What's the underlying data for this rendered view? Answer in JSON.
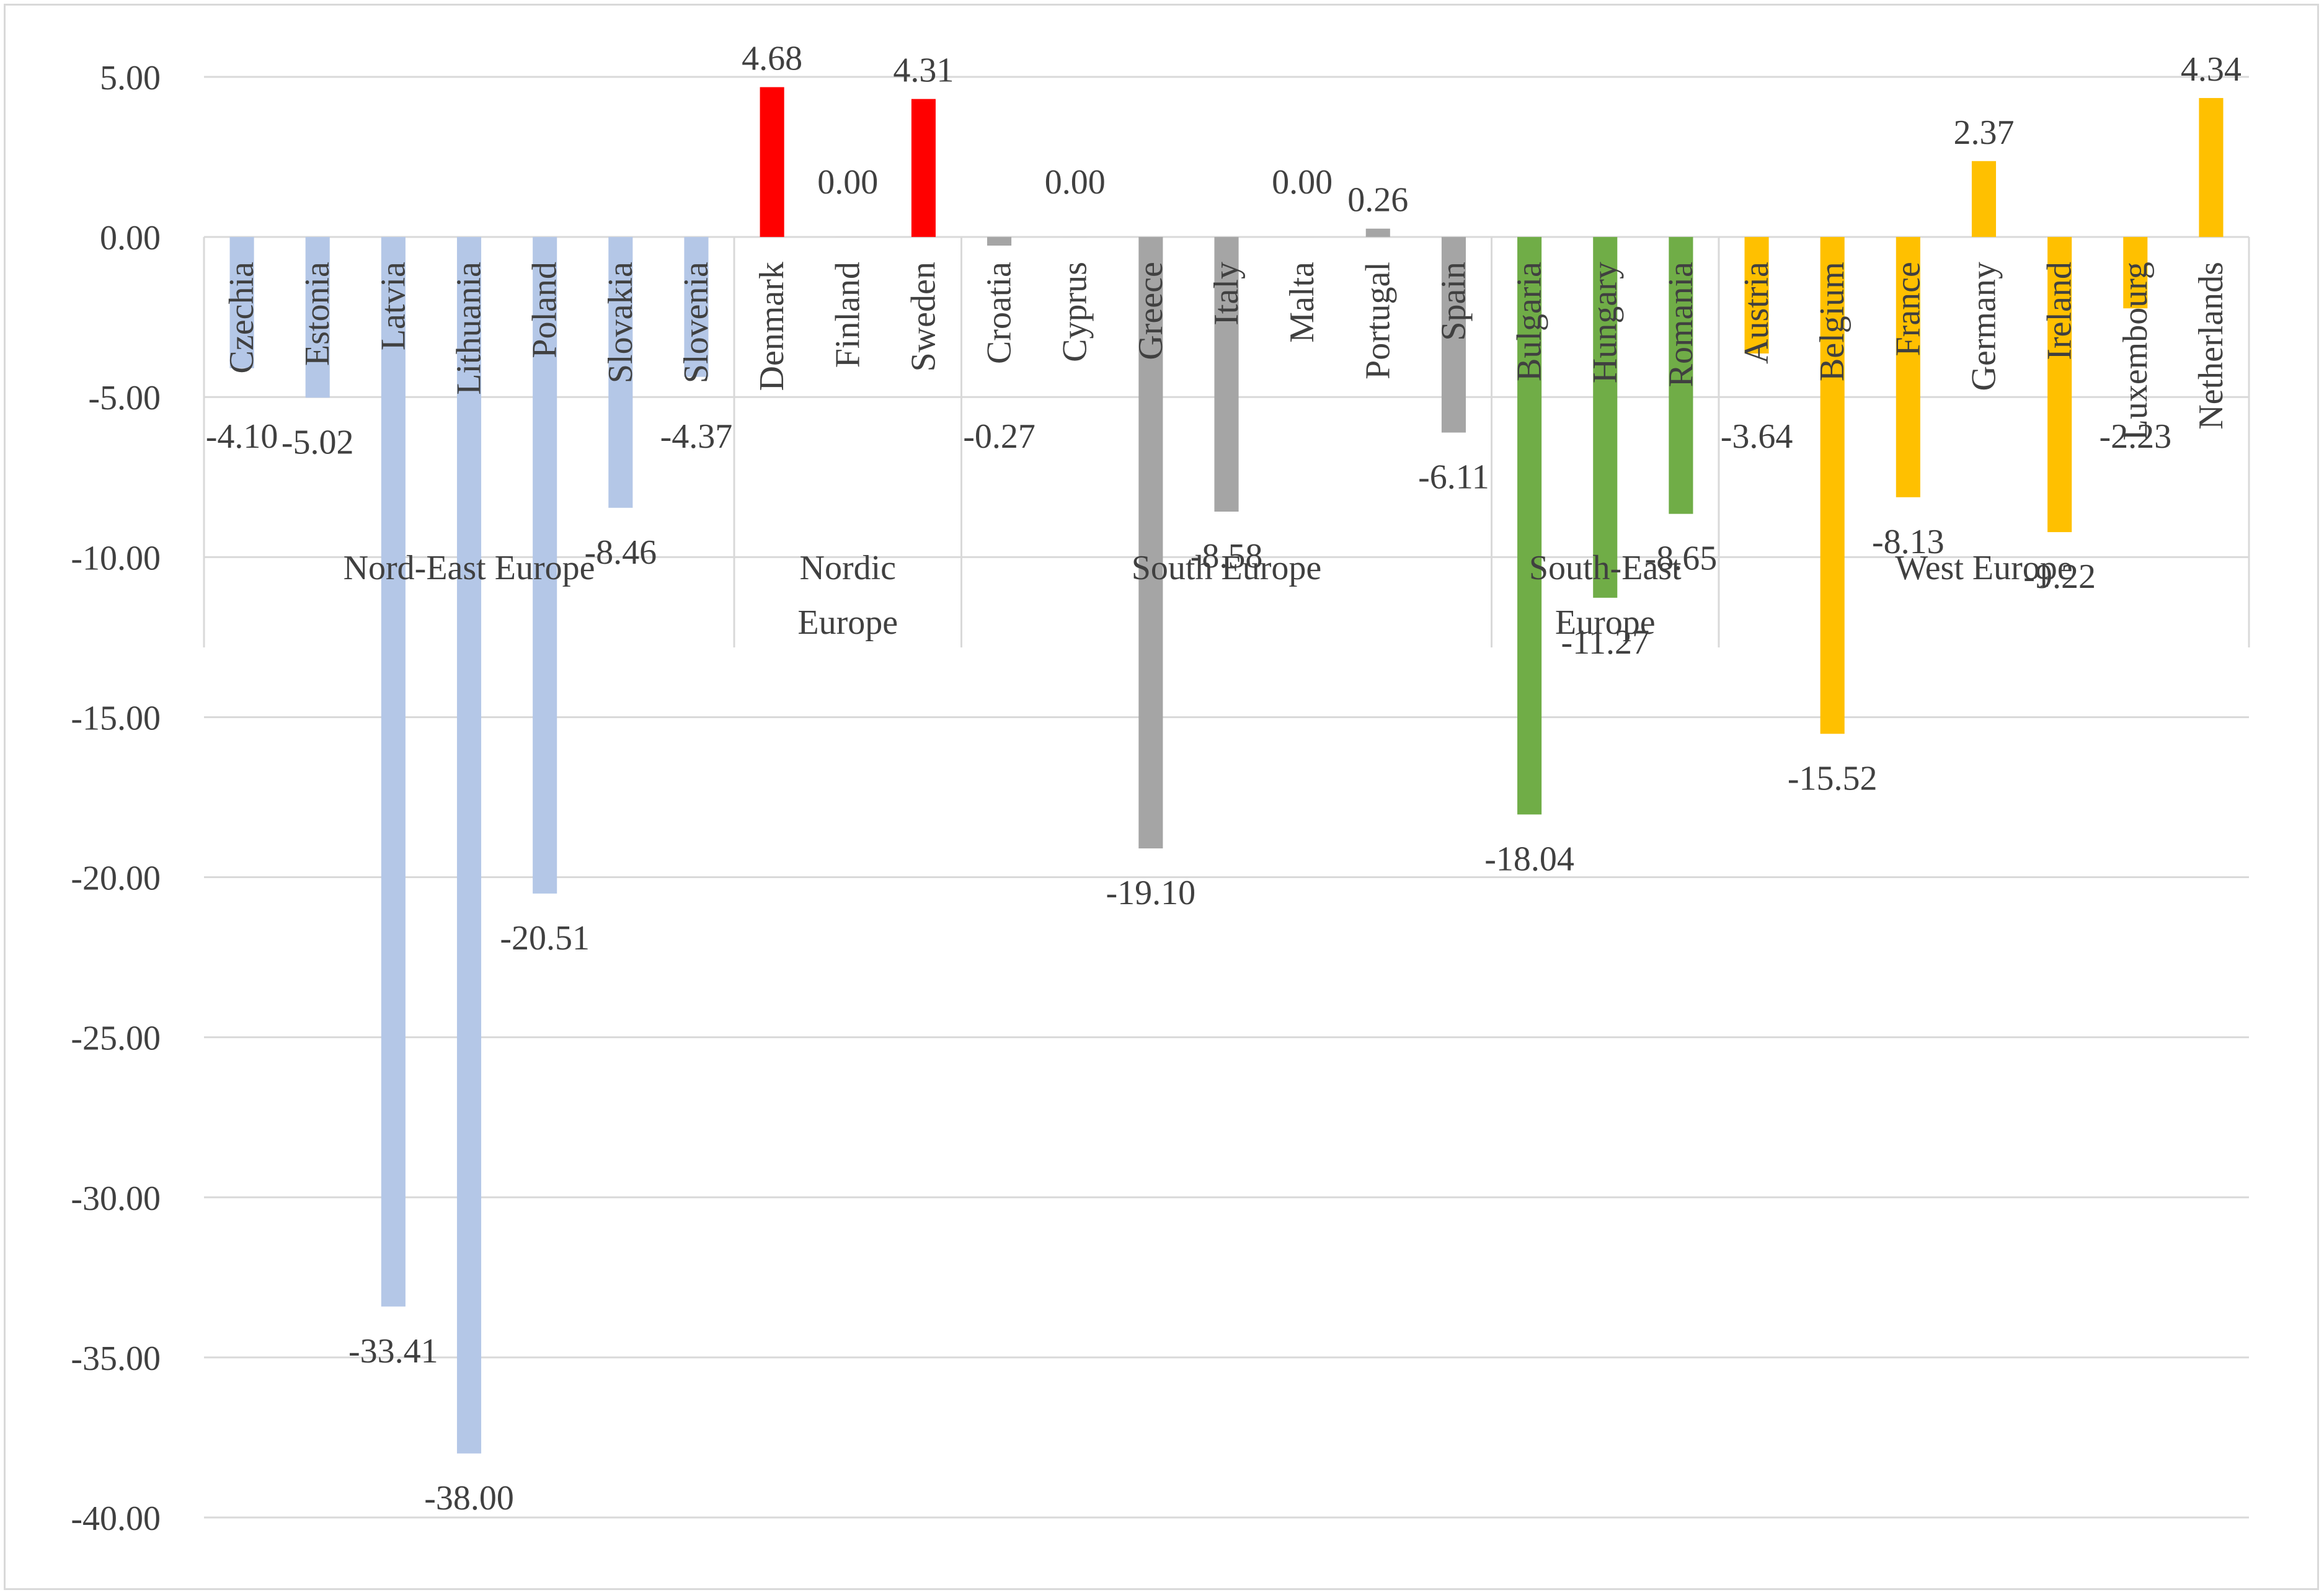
{
  "chart_data": {
    "type": "bar",
    "title": "",
    "xlabel": "",
    "ylabel": "",
    "ylim": [
      -40,
      5
    ],
    "yticks": [
      "5.00",
      "0.00",
      "-5.00",
      "-10.00",
      "-15.00",
      "-20.00",
      "-25.00",
      "-30.00",
      "-35.00",
      "-40.00"
    ],
    "grid": true,
    "legend": "none",
    "groups": [
      {
        "name_lines": [
          "Nord-East Europe"
        ],
        "color": "#b4c7e7",
        "items": [
          {
            "country": "Czechia",
            "value": -4.1,
            "label": "-4.10"
          },
          {
            "country": "Estonia",
            "value": -5.02,
            "label": "-5.02"
          },
          {
            "country": "Latvia",
            "value": -33.41,
            "label": "-33.41"
          },
          {
            "country": "Lithuania",
            "value": -38.0,
            "label": "-38.00"
          },
          {
            "country": "Poland",
            "value": -20.51,
            "label": "-20.51"
          },
          {
            "country": "Slovakia",
            "value": -8.46,
            "label": "-8.46"
          },
          {
            "country": "Slovenia",
            "value": -4.37,
            "label": "-4.37"
          }
        ]
      },
      {
        "name_lines": [
          "Nordic",
          "Europe"
        ],
        "color": "#ff0000",
        "items": [
          {
            "country": "Denmark",
            "value": 4.68,
            "label": "4.68"
          },
          {
            "country": "Finland",
            "value": 0.0,
            "label": "0.00"
          },
          {
            "country": "Sweden",
            "value": 4.31,
            "label": "4.31"
          }
        ]
      },
      {
        "name_lines": [
          "South Europe"
        ],
        "color": "#a5a5a5",
        "items": [
          {
            "country": "Croatia",
            "value": -0.27,
            "label": "-0.27"
          },
          {
            "country": "Cyprus",
            "value": 0.0,
            "label": "0.00"
          },
          {
            "country": "Greece",
            "value": -19.1,
            "label": "-19.10"
          },
          {
            "country": "Italy",
            "value": -8.58,
            "label": "-8.58"
          },
          {
            "country": "Malta",
            "value": 0.0,
            "label": "0.00"
          },
          {
            "country": "Portugal",
            "value": 0.26,
            "label": "0.26"
          },
          {
            "country": "Spain",
            "value": -6.11,
            "label": "-6.11"
          }
        ]
      },
      {
        "name_lines": [
          "South-East",
          "Europe"
        ],
        "color": "#70ad47",
        "items": [
          {
            "country": "Bulgaria",
            "value": -18.04,
            "label": "-18.04"
          },
          {
            "country": "Hungary",
            "value": -11.27,
            "label": "-11.27"
          },
          {
            "country": "Romania",
            "value": -8.65,
            "label": "-8.65"
          }
        ]
      },
      {
        "name_lines": [
          "West Europe"
        ],
        "color": "#ffc000",
        "items": [
          {
            "country": "Austria",
            "value": -3.64,
            "label": "-3.64"
          },
          {
            "country": "Belgium",
            "value": -15.52,
            "label": "-15.52"
          },
          {
            "country": "France",
            "value": -8.13,
            "label": "-8.13"
          },
          {
            "country": "Germany",
            "value": 2.37,
            "label": "2.37"
          },
          {
            "country": "Ireland",
            "value": -9.22,
            "label": "-9.22"
          },
          {
            "country": "Luxembourg",
            "value": -2.23,
            "label": "-2.23"
          },
          {
            "country": "Netherlands",
            "value": 4.34,
            "label": "4.34"
          }
        ]
      }
    ]
  }
}
